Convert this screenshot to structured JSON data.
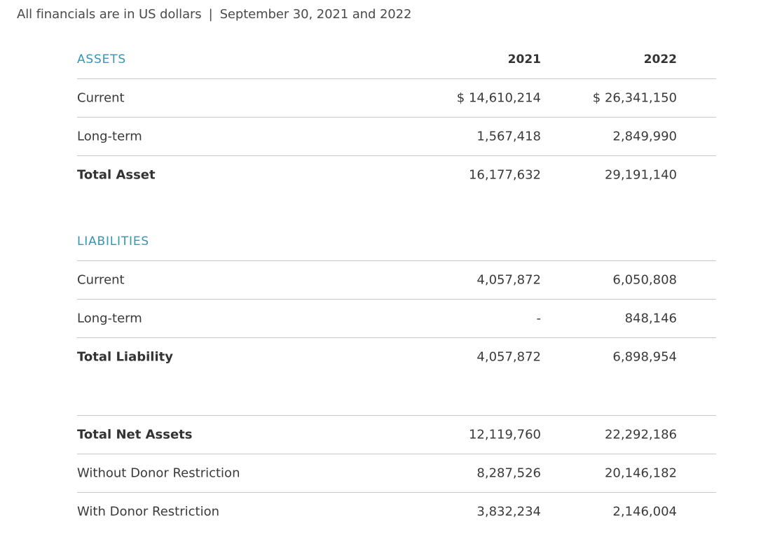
{
  "caption": {
    "left": "All financials are in US dollars",
    "separator": "|",
    "right": "September 30, 2021 and 2022"
  },
  "assets": {
    "title": "ASSETS",
    "year1": "2021",
    "year2": "2022",
    "rows": [
      {
        "label": "Current",
        "y2021": "$ 14,610,214",
        "y2022": "$ 26,341,150"
      },
      {
        "label": "Long-term",
        "y2021": "1,567,418",
        "y2022": "2,849,990"
      },
      {
        "label": "Total Asset",
        "y2021": "16,177,632",
        "y2022": "29,191,140"
      }
    ]
  },
  "liabilities": {
    "title": "LIABILITIES",
    "rows": [
      {
        "label": "Current",
        "y2021": "4,057,872",
        "y2022": "6,050,808"
      },
      {
        "label": "Long-term",
        "y2021": "-",
        "y2022": "848,146"
      },
      {
        "label": "Total Liability",
        "y2021": "4,057,872",
        "y2022": "6,898,954"
      }
    ]
  },
  "net_assets": {
    "rows": [
      {
        "label": "Total Net Assets",
        "y2021": "12,119,760",
        "y2022": "22,292,186"
      },
      {
        "label": "Without Donor Restriction",
        "y2021": "8,287,526",
        "y2022": "20,146,182"
      },
      {
        "label": "With Donor Restriction",
        "y2021": "3,832,234",
        "y2022": "2,146,004"
      }
    ]
  }
}
